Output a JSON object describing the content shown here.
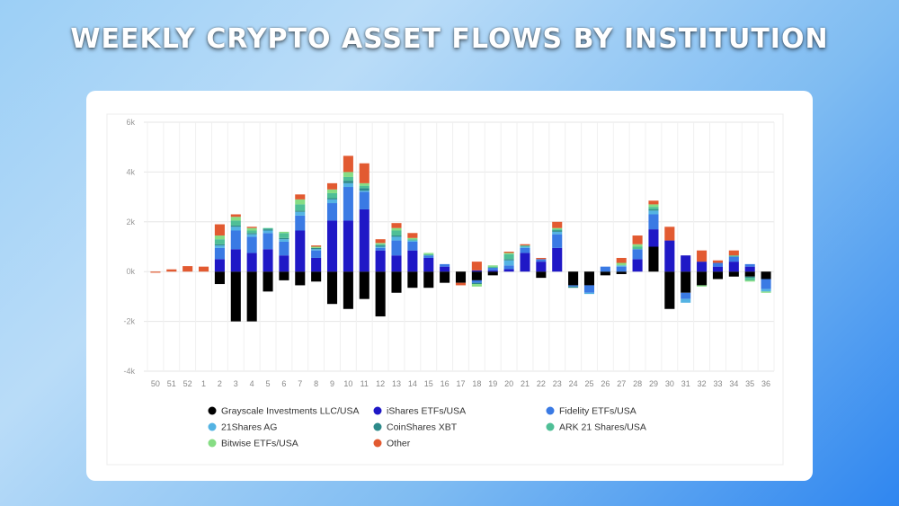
{
  "header": {
    "title": "WEEKLY CRYPTO ASSET FLOWS BY INSTITUTION"
  },
  "chart_data": {
    "type": "bar",
    "stacked": true,
    "grid": true,
    "legend_position": "bottom",
    "ylim": [
      -4000,
      6000
    ],
    "yticks": [
      6000,
      4000,
      2000,
      0,
      -2000,
      -4000
    ],
    "ytick_labels": [
      "6k",
      "4k",
      "2k",
      "0k",
      "-2k",
      "-4k"
    ],
    "categories": [
      "50",
      "51",
      "52",
      "1",
      "2",
      "3",
      "4",
      "5",
      "6",
      "7",
      "8",
      "9",
      "10",
      "11",
      "12",
      "13",
      "14",
      "15",
      "16",
      "17",
      "18",
      "19",
      "20",
      "21",
      "22",
      "23",
      "24",
      "25",
      "26",
      "27",
      "28",
      "29",
      "30",
      "31",
      "32",
      "33",
      "34",
      "35",
      "36"
    ],
    "series": [
      {
        "name": "Grayscale Investments LLC/USA",
        "color": "#000000",
        "values": [
          0,
          0,
          0,
          0,
          -500,
          -2000,
          -2000,
          -800,
          -350,
          -550,
          -400,
          -1300,
          -1500,
          -1100,
          -1800,
          -850,
          -650,
          -650,
          -450,
          -450,
          -350,
          -150,
          0,
          0,
          -250,
          0,
          -550,
          -550,
          -150,
          -100,
          0,
          1000,
          -1500,
          -850,
          -550,
          -300,
          -200,
          -200,
          -300
        ]
      },
      {
        "name": "iShares ETFs/USA",
        "color": "#1f18c6",
        "values": [
          0,
          0,
          0,
          0,
          500,
          900,
          750,
          900,
          650,
          1650,
          550,
          2050,
          2050,
          2500,
          850,
          650,
          850,
          550,
          200,
          0,
          50,
          50,
          100,
          750,
          400,
          950,
          0,
          0,
          0,
          0,
          500,
          700,
          1250,
          650,
          400,
          200,
          400,
          200,
          0
        ]
      },
      {
        "name": "Fidelity ETFs/USA",
        "color": "#3a7ae4",
        "values": [
          0,
          0,
          0,
          0,
          450,
          750,
          650,
          650,
          550,
          600,
          300,
          700,
          1350,
          700,
          100,
          600,
          350,
          100,
          100,
          0,
          -100,
          100,
          150,
          200,
          100,
          550,
          -50,
          -300,
          200,
          200,
          400,
          600,
          0,
          -250,
          0,
          150,
          200,
          100,
          -400
        ]
      },
      {
        "name": "21Shares AG",
        "color": "#54b3e3",
        "values": [
          0,
          0,
          0,
          0,
          100,
          150,
          100,
          100,
          100,
          150,
          50,
          150,
          150,
          50,
          50,
          150,
          50,
          0,
          0,
          0,
          0,
          0,
          200,
          50,
          0,
          100,
          0,
          -50,
          0,
          50,
          0,
          150,
          0,
          -150,
          0,
          0,
          0,
          0,
          -100
        ]
      },
      {
        "name": "CoinShares XBT",
        "color": "#2d8a8a",
        "values": [
          0,
          0,
          0,
          0,
          50,
          50,
          50,
          50,
          50,
          50,
          50,
          50,
          100,
          100,
          50,
          50,
          0,
          0,
          0,
          0,
          -50,
          0,
          50,
          0,
          0,
          50,
          -50,
          0,
          0,
          0,
          0,
          50,
          0,
          0,
          0,
          0,
          0,
          -50,
          0
        ]
      },
      {
        "name": "ARK 21 Shares/USA",
        "color": "#4fbf96",
        "values": [
          0,
          0,
          0,
          0,
          200,
          200,
          100,
          50,
          200,
          250,
          0,
          200,
          150,
          100,
          50,
          200,
          50,
          50,
          0,
          0,
          0,
          50,
          200,
          50,
          0,
          50,
          0,
          0,
          0,
          0,
          100,
          100,
          0,
          0,
          0,
          0,
          50,
          -100,
          0
        ]
      },
      {
        "name": "Bitwise ETFs/USA",
        "color": "#86dd84",
        "values": [
          0,
          0,
          0,
          0,
          150,
          150,
          100,
          0,
          50,
          200,
          50,
          150,
          200,
          100,
          50,
          100,
          50,
          50,
          0,
          0,
          -100,
          50,
          50,
          0,
          0,
          50,
          0,
          0,
          0,
          100,
          100,
          100,
          0,
          0,
          -50,
          0,
          0,
          -50,
          -50
        ]
      },
      {
        "name": "Other",
        "color": "#e25a31",
        "values": [
          -30,
          90,
          220,
          200,
          450,
          100,
          50,
          0,
          0,
          200,
          50,
          250,
          650,
          800,
          150,
          200,
          200,
          0,
          0,
          -100,
          350,
          0,
          50,
          50,
          50,
          250,
          0,
          0,
          0,
          200,
          350,
          150,
          550,
          0,
          450,
          100,
          200,
          0,
          0
        ]
      }
    ]
  }
}
